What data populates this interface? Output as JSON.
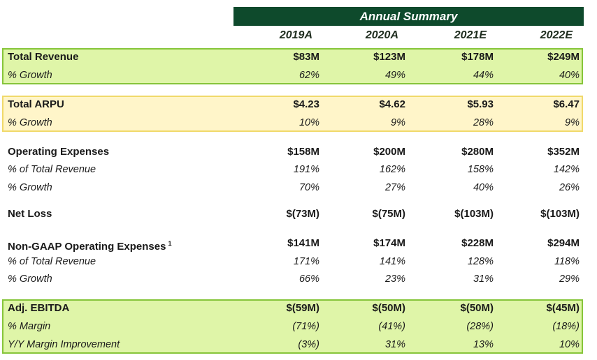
{
  "header": {
    "title": "Annual Summary"
  },
  "years": [
    "2019A",
    "2020A",
    "2021E",
    "2022E"
  ],
  "rows": [
    {
      "label": "Total Revenue",
      "style": "main",
      "values": [
        "$83M",
        "$123M",
        "$178M",
        "$249M"
      ]
    },
    {
      "label": "% Growth",
      "style": "sub",
      "values": [
        "62%",
        "49%",
        "44%",
        "40%"
      ]
    },
    {
      "label": "Total ARPU",
      "style": "main",
      "values": [
        "$4.23",
        "$4.62",
        "$5.93",
        "$6.47"
      ]
    },
    {
      "label": "% Growth",
      "style": "sub",
      "values": [
        "10%",
        "9%",
        "28%",
        "9%"
      ]
    },
    {
      "label": "Operating Expenses",
      "style": "main",
      "values": [
        "$158M",
        "$200M",
        "$280M",
        "$352M"
      ]
    },
    {
      "label": "% of Total Revenue",
      "style": "sub",
      "values": [
        "191%",
        "162%",
        "158%",
        "142%"
      ]
    },
    {
      "label": "% Growth",
      "style": "sub",
      "values": [
        "70%",
        "27%",
        "40%",
        "26%"
      ]
    },
    {
      "label": "Net Loss",
      "style": "main",
      "values": [
        "$(73M)",
        "$(75M)",
        "$(103M)",
        "$(103M)"
      ]
    },
    {
      "label": "Non-GAAP Operating Expenses",
      "footnote": "1",
      "style": "main",
      "values": [
        "$141M",
        "$174M",
        "$228M",
        "$294M"
      ]
    },
    {
      "label": "% of Total Revenue",
      "style": "sub",
      "values": [
        "171%",
        "141%",
        "128%",
        "118%"
      ]
    },
    {
      "label": "% Growth",
      "style": "sub",
      "values": [
        "66%",
        "23%",
        "31%",
        "29%"
      ]
    },
    {
      "label": "Adj. EBITDA",
      "style": "main",
      "values": [
        "$(59M)",
        "$(50M)",
        "$(50M)",
        "$(45M)"
      ]
    },
    {
      "label": "% Margin",
      "style": "sub",
      "values": [
        "(71%)",
        "(41%)",
        "(28%)",
        "(18%)"
      ]
    },
    {
      "label": "Y/Y Margin Improvement",
      "style": "sub",
      "values": [
        "(3%)",
        "31%",
        "13%",
        "10%"
      ]
    }
  ],
  "colors": {
    "header_bg": "#0e4a2c",
    "green_fill": "#dff5a8",
    "green_border": "#86c53a",
    "yellow_fill": "#fff5c9",
    "yellow_border": "#f0d96a"
  }
}
